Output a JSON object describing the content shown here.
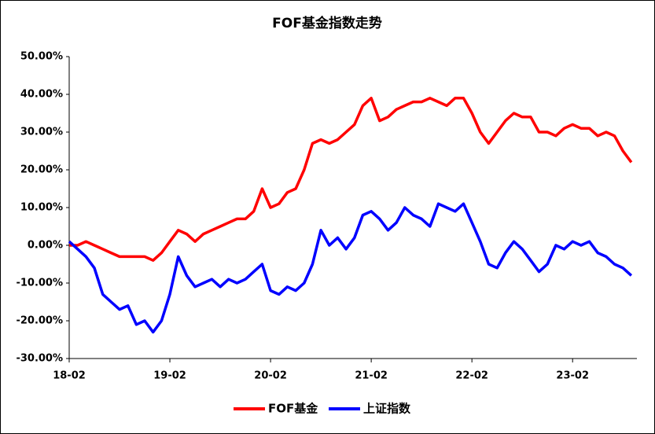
{
  "chart_data": {
    "type": "line",
    "title": "FOF基金指数走势",
    "x": [
      "18-02",
      null,
      null,
      null,
      null,
      null,
      null,
      null,
      null,
      null,
      null,
      null,
      "19-02",
      null,
      null,
      null,
      null,
      null,
      null,
      null,
      null,
      null,
      null,
      null,
      "20-02",
      null,
      null,
      null,
      null,
      null,
      null,
      null,
      null,
      null,
      null,
      null,
      "21-02",
      null,
      null,
      null,
      null,
      null,
      null,
      null,
      null,
      null,
      null,
      null,
      "22-02",
      null,
      null,
      null,
      null,
      null,
      null,
      null,
      null,
      null,
      null,
      null,
      "23-02",
      null,
      null,
      null,
      null,
      null,
      null,
      null
    ],
    "series": [
      {
        "name": "FOF基金",
        "color": "#ff0000",
        "values": [
          0,
          0,
          1,
          0,
          -1,
          -2,
          -3,
          -3,
          -3,
          -3,
          -4,
          -2,
          1,
          4,
          3,
          1,
          3,
          4,
          5,
          6,
          7,
          7,
          9,
          15,
          10,
          11,
          14,
          15,
          20,
          27,
          28,
          27,
          28,
          30,
          32,
          37,
          39,
          33,
          34,
          36,
          37,
          38,
          38,
          39,
          38,
          37,
          39,
          39,
          35,
          30,
          27,
          30,
          33,
          35,
          34,
          34,
          30,
          30,
          29,
          31,
          32,
          31,
          31,
          29,
          30,
          29,
          25,
          22
        ]
      },
      {
        "name": "上证指数",
        "color": "#0000ff",
        "values": [
          1,
          -1,
          -3,
          -6,
          -13,
          -15,
          -17,
          -16,
          -21,
          -20,
          -23,
          -20,
          -13,
          -3,
          -8,
          -11,
          -10,
          -9,
          -11,
          -9,
          -10,
          -9,
          -7,
          -5,
          -12,
          -13,
          -11,
          -12,
          -10,
          -5,
          4,
          0,
          2,
          -1,
          2,
          8,
          9,
          7,
          4,
          6,
          10,
          8,
          7,
          5,
          11,
          10,
          9,
          11,
          6,
          1,
          -5,
          -6,
          -2,
          1,
          -1,
          -4,
          -7,
          -5,
          0,
          -1,
          1,
          0,
          1,
          -2,
          -3,
          -5,
          -6,
          -8
        ]
      }
    ],
    "ylim": [
      -30,
      50
    ],
    "yticks": [
      {
        "value": -30,
        "label": "-30.00%"
      },
      {
        "value": -20,
        "label": "-20.00%"
      },
      {
        "value": -10,
        "label": "-10.00%"
      },
      {
        "value": 0,
        "label": "0.00%"
      },
      {
        "value": 10,
        "label": "10.00%"
      },
      {
        "value": 20,
        "label": "20.00%"
      },
      {
        "value": 30,
        "label": "30.00%"
      },
      {
        "value": 40,
        "label": "40.00%"
      },
      {
        "value": 50,
        "label": "50.00%"
      }
    ],
    "legend": "bottom"
  }
}
